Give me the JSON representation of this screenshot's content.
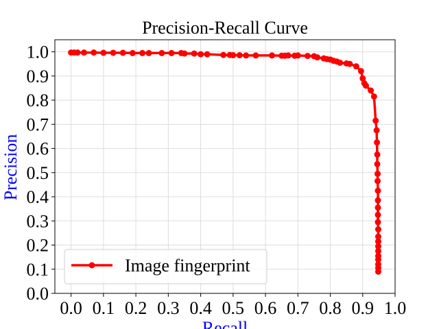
{
  "chart_data": {
    "type": "line",
    "title": "Precision-Recall Curve",
    "xlabel": "Recall",
    "ylabel": "Precision",
    "xlim": [
      -0.05,
      1.0
    ],
    "ylim": [
      0.0,
      1.05
    ],
    "xticks": [
      "0.0",
      "0.1",
      "0.2",
      "0.3",
      "0.4",
      "0.5",
      "0.6",
      "0.7",
      "0.8",
      "0.9",
      "1.0"
    ],
    "yticks": [
      "0.0",
      "0.1",
      "0.2",
      "0.3",
      "0.4",
      "0.5",
      "0.6",
      "0.7",
      "0.8",
      "0.9",
      "1.0"
    ],
    "grid": true,
    "legend_position": "lower-left",
    "colors": {
      "series": "#ff0000",
      "axis_label": "#0000ff",
      "grid": "#dddddd"
    },
    "series": [
      {
        "name": "Image fingerprint",
        "x": [
          0.0,
          0.01,
          0.02,
          0.04,
          0.07,
          0.1,
          0.13,
          0.16,
          0.19,
          0.22,
          0.24,
          0.28,
          0.31,
          0.34,
          0.35,
          0.38,
          0.4,
          0.42,
          0.47,
          0.49,
          0.5,
          0.52,
          0.54,
          0.57,
          0.62,
          0.65,
          0.66,
          0.67,
          0.69,
          0.7,
          0.73,
          0.75,
          0.76,
          0.78,
          0.79,
          0.8,
          0.81,
          0.82,
          0.83,
          0.85,
          0.86,
          0.88,
          0.895,
          0.9,
          0.905,
          0.91,
          0.925,
          0.935,
          0.94,
          0.943,
          0.944,
          0.945,
          0.945,
          0.946,
          0.946,
          0.947,
          0.947,
          0.947,
          0.947,
          0.947,
          0.948,
          0.948,
          0.948,
          0.948,
          0.948,
          0.948,
          0.948,
          0.948,
          0.948,
          0.948
        ],
        "y": [
          0.997,
          0.997,
          0.997,
          0.997,
          0.997,
          0.996,
          0.996,
          0.996,
          0.995,
          0.995,
          0.995,
          0.995,
          0.995,
          0.995,
          0.993,
          0.993,
          0.99,
          0.99,
          0.987,
          0.987,
          0.986,
          0.986,
          0.985,
          0.985,
          0.985,
          0.984,
          0.984,
          0.985,
          0.984,
          0.985,
          0.983,
          0.982,
          0.977,
          0.973,
          0.97,
          0.968,
          0.963,
          0.96,
          0.955,
          0.952,
          0.95,
          0.94,
          0.92,
          0.89,
          0.87,
          0.86,
          0.84,
          0.815,
          0.715,
          0.675,
          0.625,
          0.575,
          0.535,
          0.495,
          0.465,
          0.425,
          0.385,
          0.355,
          0.325,
          0.295,
          0.265,
          0.235,
          0.215,
          0.195,
          0.175,
          0.155,
          0.14,
          0.12,
          0.105,
          0.09
        ]
      }
    ]
  }
}
